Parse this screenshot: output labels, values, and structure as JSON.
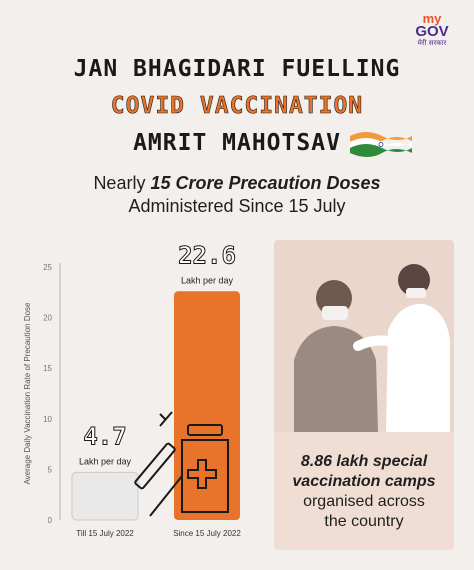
{
  "logo": {
    "line1": "my",
    "line2": "GOV",
    "line3": "मेरी सरकार"
  },
  "title": {
    "line1": "JAN BHAGIDARI FUELLING",
    "line2": "COVID VACCINATION",
    "line3": "AMRIT MAHOTSAV"
  },
  "subtitle": {
    "prefix": "Nearly ",
    "highlight": "15 Crore Precaution Doses",
    "line2": "Administered Since 15 July"
  },
  "colors": {
    "orange": "#e8742b",
    "bar_grey": "#e9e9e9",
    "saffron": "#f39a3a",
    "green": "#2e8b3a"
  },
  "chart_data": {
    "type": "bar",
    "categories": [
      "Till 15 July 2022",
      "Since 15 July 2022"
    ],
    "values": [
      4.7,
      22.6
    ],
    "value_labels": [
      "4.7",
      "22.6"
    ],
    "unit_label": "Lakh per day",
    "ylabel": "Average Daily Vaccination Rate of Precaution Dose",
    "ylim": [
      0,
      25
    ],
    "yticks": [
      0,
      5,
      10,
      15,
      20,
      25
    ],
    "grid": false
  },
  "camps": {
    "line1": "8.86 lakh special",
    "line2": "vaccination camps",
    "line3": "organised across",
    "line4": "the country"
  }
}
